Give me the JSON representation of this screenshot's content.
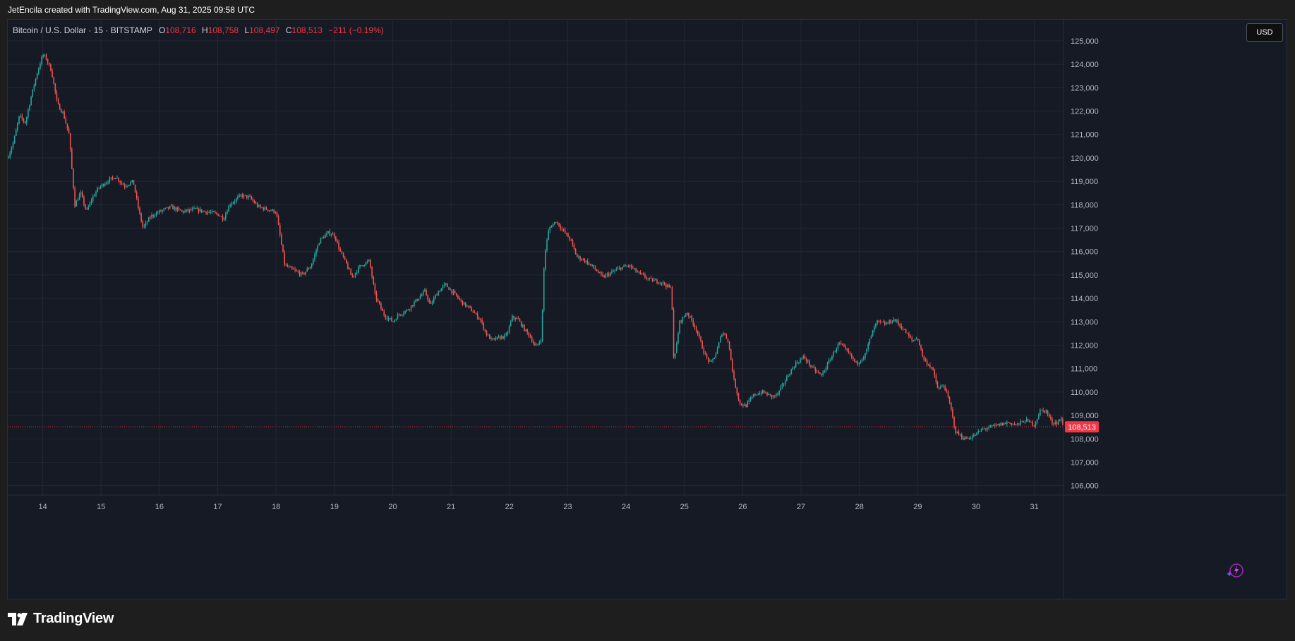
{
  "caption": "JetEncila created with TradingView.com, Aug 31, 2025 09:58 UTC",
  "legend": {
    "symbol": "Bitcoin / U.S. Dollar · 15 · BITSTAMP",
    "open_label": "O",
    "open": "108,716",
    "high_label": "H",
    "high": "108,758",
    "low_label": "L",
    "low": "108,497",
    "close_label": "C",
    "close": "108,513",
    "change": "−211 (−0.19%)"
  },
  "currency": "USD",
  "logo_text": "TradingView",
  "last_price_label": "108,513",
  "colors": {
    "up": "#26a69a",
    "down": "#ef5350",
    "background": "#161a25",
    "grid": "#232734",
    "price_line": "#f23645",
    "text": "#b2b5be"
  },
  "chart_data": {
    "type": "candlestick",
    "symbol": "BTCUSD",
    "exchange": "BITSTAMP",
    "interval": "15",
    "x_range": [
      13.4,
      31.5
    ],
    "ylim": [
      105600,
      125900
    ],
    "yticks": [
      106000,
      107000,
      108000,
      109000,
      110000,
      111000,
      112000,
      113000,
      114000,
      115000,
      116000,
      117000,
      118000,
      119000,
      120000,
      121000,
      122000,
      123000,
      124000,
      125000
    ],
    "ytick_labels": [
      "106,000",
      "107,000",
      "108,000",
      "109,000",
      "110,000",
      "111,000",
      "112,000",
      "113,000",
      "114,000",
      "115,000",
      "116,000",
      "117,000",
      "118,000",
      "119,000",
      "120,000",
      "121,000",
      "122,000",
      "123,000",
      "124,000",
      "125,000"
    ],
    "xticks": [
      14,
      15,
      16,
      17,
      18,
      19,
      20,
      21,
      22,
      23,
      24,
      25,
      26,
      27,
      28,
      29,
      30,
      31
    ],
    "xtick_labels": [
      "14",
      "15",
      "16",
      "17",
      "18",
      "19",
      "20",
      "21",
      "22",
      "23",
      "24",
      "25",
      "26",
      "27",
      "28",
      "29",
      "30",
      "31"
    ],
    "grid": true,
    "last_price": 108513,
    "price_path": [
      [
        13.4,
        120000
      ],
      [
        13.5,
        120700
      ],
      [
        13.6,
        121800
      ],
      [
        13.7,
        121500
      ],
      [
        13.8,
        122600
      ],
      [
        13.9,
        123600
      ],
      [
        14.0,
        124400
      ],
      [
        14.05,
        124300
      ],
      [
        14.15,
        123700
      ],
      [
        14.25,
        122300
      ],
      [
        14.35,
        121900
      ],
      [
        14.45,
        121000
      ],
      [
        14.5,
        119500
      ],
      [
        14.55,
        118000
      ],
      [
        14.65,
        118500
      ],
      [
        14.75,
        117700
      ],
      [
        14.85,
        118300
      ],
      [
        14.95,
        118700
      ],
      [
        15.1,
        119000
      ],
      [
        15.25,
        119200
      ],
      [
        15.4,
        118800
      ],
      [
        15.55,
        119000
      ],
      [
        15.65,
        117700
      ],
      [
        15.72,
        117000
      ],
      [
        15.85,
        117500
      ],
      [
        16.0,
        117700
      ],
      [
        16.2,
        117900
      ],
      [
        16.4,
        117700
      ],
      [
        16.6,
        117800
      ],
      [
        16.8,
        117700
      ],
      [
        17.0,
        117600
      ],
      [
        17.1,
        117400
      ],
      [
        17.2,
        118000
      ],
      [
        17.4,
        118400
      ],
      [
        17.55,
        118300
      ],
      [
        17.7,
        117900
      ],
      [
        17.85,
        117800
      ],
      [
        18.0,
        117700
      ],
      [
        18.08,
        116500
      ],
      [
        18.15,
        115400
      ],
      [
        18.3,
        115200
      ],
      [
        18.45,
        115000
      ],
      [
        18.6,
        115400
      ],
      [
        18.75,
        116500
      ],
      [
        18.9,
        116800
      ],
      [
        19.0,
        116700
      ],
      [
        19.1,
        116000
      ],
      [
        19.2,
        115500
      ],
      [
        19.3,
        114900
      ],
      [
        19.45,
        115400
      ],
      [
        19.6,
        115600
      ],
      [
        19.7,
        114100
      ],
      [
        19.85,
        113300
      ],
      [
        20.0,
        113000
      ],
      [
        20.1,
        113300
      ],
      [
        20.25,
        113500
      ],
      [
        20.4,
        113900
      ],
      [
        20.55,
        114300
      ],
      [
        20.65,
        113700
      ],
      [
        20.75,
        114200
      ],
      [
        20.9,
        114600
      ],
      [
        21.05,
        114200
      ],
      [
        21.2,
        113800
      ],
      [
        21.35,
        113500
      ],
      [
        21.5,
        113100
      ],
      [
        21.6,
        112500
      ],
      [
        21.7,
        112200
      ],
      [
        21.8,
        112300
      ],
      [
        21.95,
        112400
      ],
      [
        22.05,
        113200
      ],
      [
        22.15,
        113100
      ],
      [
        22.25,
        112700
      ],
      [
        22.35,
        112400
      ],
      [
        22.45,
        111900
      ],
      [
        22.55,
        112300
      ],
      [
        22.6,
        115800
      ],
      [
        22.68,
        117000
      ],
      [
        22.8,
        117300
      ],
      [
        22.95,
        116800
      ],
      [
        23.05,
        116500
      ],
      [
        23.15,
        115800
      ],
      [
        23.3,
        115600
      ],
      [
        23.45,
        115300
      ],
      [
        23.6,
        114900
      ],
      [
        23.75,
        115100
      ],
      [
        23.9,
        115300
      ],
      [
        24.05,
        115400
      ],
      [
        24.2,
        115100
      ],
      [
        24.4,
        114800
      ],
      [
        24.6,
        114700
      ],
      [
        24.78,
        114400
      ],
      [
        24.82,
        111200
      ],
      [
        24.92,
        113000
      ],
      [
        25.05,
        113400
      ],
      [
        25.2,
        112700
      ],
      [
        25.35,
        111600
      ],
      [
        25.45,
        111200
      ],
      [
        25.55,
        111700
      ],
      [
        25.65,
        112600
      ],
      [
        25.75,
        112200
      ],
      [
        25.85,
        110500
      ],
      [
        25.95,
        109500
      ],
      [
        26.05,
        109400
      ],
      [
        26.2,
        109900
      ],
      [
        26.35,
        110000
      ],
      [
        26.5,
        109800
      ],
      [
        26.6,
        109900
      ],
      [
        26.75,
        110600
      ],
      [
        26.9,
        111200
      ],
      [
        27.05,
        111500
      ],
      [
        27.2,
        111000
      ],
      [
        27.35,
        110700
      ],
      [
        27.5,
        111400
      ],
      [
        27.65,
        112100
      ],
      [
        27.8,
        111700
      ],
      [
        27.95,
        111200
      ],
      [
        28.1,
        111600
      ],
      [
        28.2,
        112400
      ],
      [
        28.3,
        113000
      ],
      [
        28.45,
        112900
      ],
      [
        28.6,
        113100
      ],
      [
        28.75,
        112700
      ],
      [
        28.9,
        112200
      ],
      [
        29.0,
        112300
      ],
      [
        29.1,
        111400
      ],
      [
        29.25,
        111000
      ],
      [
        29.35,
        110100
      ],
      [
        29.45,
        110300
      ],
      [
        29.55,
        109500
      ],
      [
        29.65,
        108300
      ],
      [
        29.8,
        108000
      ],
      [
        29.95,
        108100
      ],
      [
        30.1,
        108400
      ],
      [
        30.25,
        108500
      ],
      [
        30.4,
        108600
      ],
      [
        30.55,
        108700
      ],
      [
        30.7,
        108600
      ],
      [
        30.85,
        108800
      ],
      [
        31.0,
        108600
      ],
      [
        31.1,
        109200
      ],
      [
        31.2,
        109200
      ],
      [
        31.3,
        108700
      ],
      [
        31.4,
        108700
      ],
      [
        31.45,
        108900
      ],
      [
        31.5,
        108513
      ]
    ]
  }
}
